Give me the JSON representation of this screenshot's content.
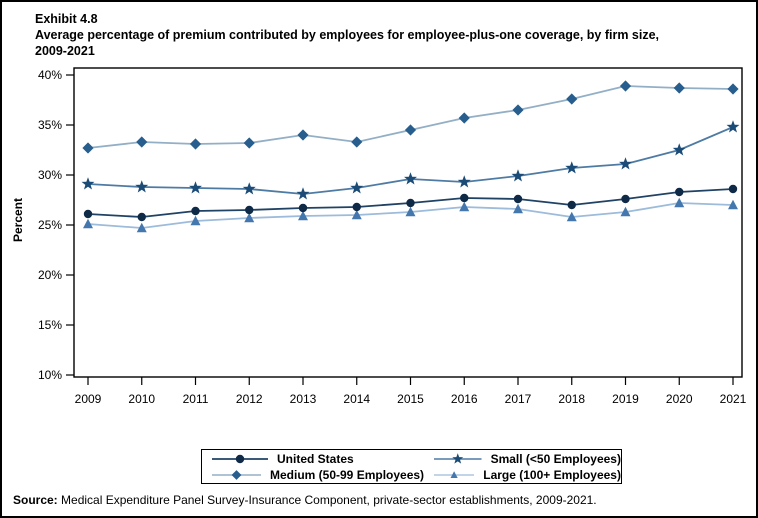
{
  "header": {
    "exhibit_label": "Exhibit 4.8",
    "title_line1": "Average percentage of premium contributed by employees for employee-plus-one coverage, by firm size,",
    "title_line2": "2009-2021"
  },
  "chart_data": {
    "type": "line",
    "x": [
      2009,
      2010,
      2011,
      2012,
      2013,
      2014,
      2015,
      2016,
      2017,
      2018,
      2019,
      2020,
      2021
    ],
    "xtick_labels": [
      "2009",
      "2010",
      "2011",
      "2012",
      "2013",
      "2014",
      "2015",
      "2016",
      "2017",
      "2018",
      "2019",
      "2020",
      "2021"
    ],
    "ylabel": "Percent",
    "ylim": [
      10,
      40
    ],
    "ytick_step": 5,
    "ytick_labels": [
      "10%",
      "15%",
      "20%",
      "25%",
      "30%",
      "35%",
      "40%"
    ],
    "grid": false,
    "legend_position": "bottom-center",
    "series": [
      {
        "name": "United States",
        "marker": "circle",
        "marker_color": "#0E2A47",
        "line_color": "#1F4265",
        "values": [
          26.1,
          25.8,
          26.4,
          26.5,
          26.7,
          26.8,
          27.2,
          27.7,
          27.6,
          27.0,
          27.6,
          28.3,
          28.6
        ]
      },
      {
        "name": "Small (<50 Employees)",
        "marker": "star",
        "marker_color": "#1B4B77",
        "line_color": "#4E7BA4",
        "values": [
          29.1,
          28.8,
          28.7,
          28.6,
          28.1,
          28.7,
          29.6,
          29.3,
          29.9,
          30.7,
          31.1,
          32.5,
          34.8
        ]
      },
      {
        "name": "Medium (50-99 Employees)",
        "marker": "diamond",
        "marker_color": "#275E8E",
        "line_color": "#93AFC6",
        "values": [
          32.7,
          33.3,
          33.1,
          33.2,
          34.0,
          33.3,
          34.5,
          35.7,
          36.5,
          37.6,
          38.9,
          38.7,
          38.6
        ]
      },
      {
        "name": "Large (100+ Employees)",
        "marker": "triangle",
        "marker_color": "#4377AE",
        "line_color": "#9DBBDA",
        "values": [
          25.1,
          24.7,
          25.4,
          25.7,
          25.9,
          26.0,
          26.3,
          26.8,
          26.6,
          25.8,
          26.3,
          27.2,
          27.0
        ]
      }
    ],
    "legend_order": [
      0,
      1,
      2,
      3
    ]
  },
  "footer": {
    "source_label": "Source:",
    "source_text": " Medical Expenditure Panel Survey-Insurance Component, private-sector establishments, 2009-2021."
  }
}
